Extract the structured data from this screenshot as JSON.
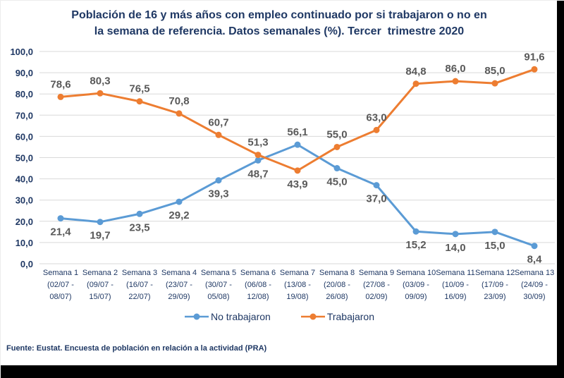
{
  "chart_data": {
    "type": "line",
    "title": "Población de 16 y más años con empleo continuado por si trabajaron o no en la semana de referencia. Datos semanales (%). Tercer  trimestre 2020",
    "title_lines": [
      "Población de 16 y más años con empleo continuado por si trabajaron o no en",
      "la semana de referencia. Datos semanales (%). Tercer  trimestre 2020"
    ],
    "categories": [
      "Semana 1",
      "Semana 2",
      "Semana 3",
      "Semana 4",
      "Semana 5",
      "Semana 6",
      "Semana 7",
      "Semana 8",
      "Semana 9",
      "Semana 10",
      "Semana 11",
      "Semana 12",
      "Semana 13"
    ],
    "categories_lines": [
      [
        "Semana 1",
        "(02/07 -",
        "08/07)"
      ],
      [
        "Semana 2",
        "(09/07 -",
        "15/07)"
      ],
      [
        "Semana 3",
        "(16/07 -",
        "22/07)"
      ],
      [
        "Semana 4",
        "(23/07 -",
        "29/09)"
      ],
      [
        "Semana 5",
        "(30/07 -",
        "05/08)"
      ],
      [
        "Semana 6",
        "(06/08 -",
        "12/08)"
      ],
      [
        "Semana 7",
        "(13/08 -",
        "19/08)"
      ],
      [
        "Semana 8",
        "(20/08 -",
        "26/08)"
      ],
      [
        "Semana 9",
        "(27/08 -",
        "02/09)"
      ],
      [
        "Semana 10",
        "(03/09 -",
        "09/09)"
      ],
      [
        "Semana 11",
        "(10/09 -",
        "16/09)"
      ],
      [
        "Semana 12",
        "(17/09 -",
        "23/09)"
      ],
      [
        "Semana 13",
        "(24/09 -",
        "30/09)"
      ]
    ],
    "series": [
      {
        "name": "No trabajaron",
        "color": "#5B9BD5",
        "values": [
          21.4,
          19.7,
          23.5,
          29.2,
          39.3,
          48.7,
          56.1,
          45.0,
          37.0,
          15.2,
          14.0,
          15.0,
          8.4
        ],
        "label_positions": [
          "below",
          "below",
          "below",
          "below",
          "below",
          "below",
          "above",
          "below",
          "below",
          "below",
          "below",
          "below",
          "below"
        ]
      },
      {
        "name": "Trabajaron",
        "color": "#ED7D31",
        "values": [
          78.6,
          80.3,
          76.5,
          70.8,
          60.7,
          51.3,
          43.9,
          55.0,
          63.0,
          84.8,
          86.0,
          85.0,
          91.6
        ],
        "label_positions": [
          "above",
          "above",
          "above",
          "above",
          "above",
          "above",
          "below",
          "above",
          "above",
          "above",
          "above",
          "above",
          "above"
        ]
      }
    ],
    "ylim": [
      0,
      100
    ],
    "ytick_step": 10,
    "grid": "horizontal",
    "legend_position": "bottom",
    "decimal_separator": ",",
    "ylabel": "",
    "xlabel": ""
  },
  "footer": {
    "source": "Fuente: Eustat. Encuesta de población en relación a la actividad (PRA)"
  },
  "colors": {
    "title_text": "#1F3864",
    "axis_text": "#1F3864",
    "legend_text": "#1F3864",
    "footer_text": "#1F3864",
    "data_label_text": "#595959",
    "gridline": "#D9D9D9",
    "series_no_trabajaron": "#5B9BD5",
    "series_trabajaron": "#ED7D31",
    "frame_bars": "#000000",
    "background": "#FFFFFF"
  }
}
